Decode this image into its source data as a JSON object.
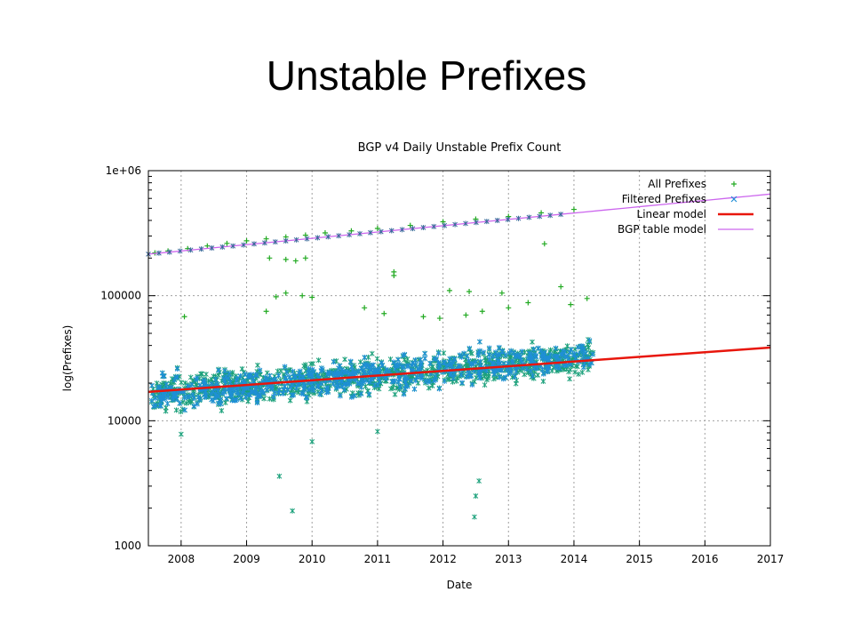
{
  "slide": {
    "title": "Unstable Prefixes"
  },
  "chart_data": {
    "type": "scatter",
    "title": "BGP v4 Daily Unstable Prefix Count",
    "xlabel": "Date",
    "ylabel": "log(Prefixes)",
    "x_scale": "time-years",
    "y_scale": "log",
    "xlim": [
      "2007-07",
      "2017-01"
    ],
    "ylim": [
      1000,
      1000000
    ],
    "x_ticks": [
      "2008",
      "2009",
      "2010",
      "2011",
      "2012",
      "2013",
      "2014",
      "2015",
      "2016",
      "2017"
    ],
    "y_ticks": [
      "1000",
      "10000",
      "100000",
      "1e+06"
    ],
    "grid": true,
    "legend_position": "top-right",
    "colors": {
      "all_prefixes": "#22aa22",
      "filtered_prefixes": "#1f8fd6",
      "linear_model": "#e8160c",
      "bgp_table_model": "#cc66ee"
    },
    "legend": [
      {
        "label": "All Prefixes",
        "marker": "+",
        "color": "#22aa22"
      },
      {
        "label": "Filtered Prefixes",
        "marker": "x",
        "color": "#1f8fd6"
      },
      {
        "label": "Linear model",
        "marker": "line",
        "color": "#e8160c"
      },
      {
        "label": "BGP table model",
        "marker": "line",
        "color": "#cc66ee"
      }
    ],
    "series": [
      {
        "name": "All Prefixes",
        "kind": "scatter",
        "points": [
          {
            "x": 2007.6,
            "y": 220000
          },
          {
            "x": 2007.8,
            "y": 228000
          },
          {
            "x": 2008.1,
            "y": 238000
          },
          {
            "x": 2008.4,
            "y": 250000
          },
          {
            "x": 2008.7,
            "y": 262000
          },
          {
            "x": 2009.0,
            "y": 275000
          },
          {
            "x": 2009.3,
            "y": 285000
          },
          {
            "x": 2009.6,
            "y": 295000
          },
          {
            "x": 2009.9,
            "y": 305000
          },
          {
            "x": 2010.2,
            "y": 318000
          },
          {
            "x": 2010.6,
            "y": 330000
          },
          {
            "x": 2011.0,
            "y": 345000
          },
          {
            "x": 2011.5,
            "y": 365000
          },
          {
            "x": 2012.0,
            "y": 390000
          },
          {
            "x": 2012.5,
            "y": 410000
          },
          {
            "x": 2013.0,
            "y": 430000
          },
          {
            "x": 2013.5,
            "y": 460000
          },
          {
            "x": 2014.0,
            "y": 490000
          },
          {
            "x": 2009.35,
            "y": 200000
          },
          {
            "x": 2009.6,
            "y": 195000
          },
          {
            "x": 2009.75,
            "y": 190000
          },
          {
            "x": 2009.9,
            "y": 200000
          },
          {
            "x": 2011.25,
            "y": 155000
          },
          {
            "x": 2011.25,
            "y": 145000
          },
          {
            "x": 2013.55,
            "y": 260000
          },
          {
            "x": 2009.45,
            "y": 98000
          },
          {
            "x": 2009.6,
            "y": 105000
          },
          {
            "x": 2009.85,
            "y": 100000
          },
          {
            "x": 2010.0,
            "y": 97000
          },
          {
            "x": 2009.3,
            "y": 75000
          },
          {
            "x": 2008.05,
            "y": 68000
          },
          {
            "x": 2010.8,
            "y": 80000
          },
          {
            "x": 2011.1,
            "y": 72000
          },
          {
            "x": 2011.7,
            "y": 68000
          },
          {
            "x": 2011.95,
            "y": 66000
          },
          {
            "x": 2012.1,
            "y": 110000
          },
          {
            "x": 2012.4,
            "y": 108000
          },
          {
            "x": 2012.9,
            "y": 105000
          },
          {
            "x": 2013.3,
            "y": 88000
          },
          {
            "x": 2013.8,
            "y": 118000
          },
          {
            "x": 2014.2,
            "y": 95000
          },
          {
            "x": 2012.35,
            "y": 70000
          },
          {
            "x": 2012.6,
            "y": 75000
          },
          {
            "x": 2013.0,
            "y": 80000
          },
          {
            "x": 2013.95,
            "y": 85000
          }
        ]
      },
      {
        "name": "Filtered Prefixes",
        "kind": "scatter",
        "trend_start": {
          "x": 2007.6,
          "y": 16500
        },
        "trend_end": {
          "x": 2014.3,
          "y": 32000
        },
        "x_range": [
          2007.55,
          2014.3
        ],
        "outliers": [
          {
            "x": 2009.5,
            "y": 3600
          },
          {
            "x": 2009.7,
            "y": 1900
          },
          {
            "x": 2012.55,
            "y": 3300
          },
          {
            "x": 2012.5,
            "y": 2500
          },
          {
            "x": 2012.48,
            "y": 1700
          },
          {
            "x": 2010.0,
            "y": 6800
          },
          {
            "x": 2011.0,
            "y": 8200
          },
          {
            "x": 2008.0,
            "y": 7800
          }
        ]
      },
      {
        "name": "Linear model",
        "kind": "line",
        "points": [
          {
            "x": 2007.5,
            "y": 17000
          },
          {
            "x": 2017.0,
            "y": 38500
          }
        ]
      },
      {
        "name": "BGP table model",
        "kind": "line",
        "points": [
          {
            "x": 2007.5,
            "y": 215000
          },
          {
            "x": 2017.0,
            "y": 650000
          }
        ]
      }
    ]
  }
}
